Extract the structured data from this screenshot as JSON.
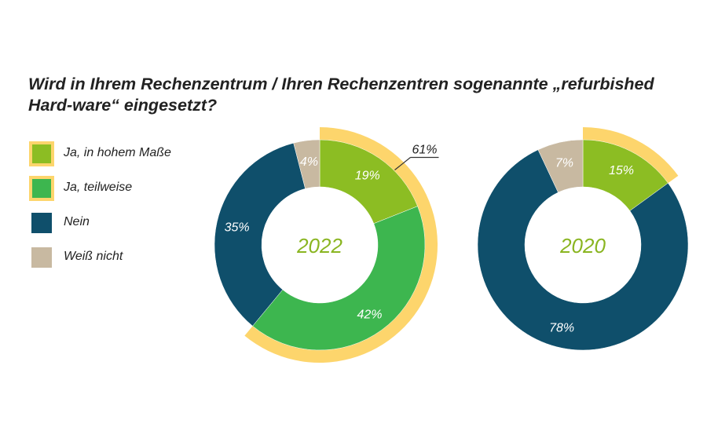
{
  "title": "Wird in Ihrem Rechenzentrum / Ihren Rechenzentren sogenannte „refurbished Hard-ware“ eingesetzt?",
  "legend": [
    {
      "label": "Ja, in hohem Maße",
      "color": "#8cbd23",
      "highlight": true
    },
    {
      "label": "Ja, teilweise",
      "color": "#3db64f",
      "highlight": true
    },
    {
      "label": "Nein",
      "color": "#0f4f6b",
      "highlight": false
    },
    {
      "label": "Weiß nicht",
      "color": "#c8b9a1",
      "highlight": false
    }
  ],
  "highlight_color": "#fdd56c",
  "chart_data": [
    {
      "type": "pie",
      "center_label": "2022",
      "categories": [
        "Ja, in hohem Maße",
        "Ja, teilweise",
        "Nein",
        "Weiß nicht"
      ],
      "values": [
        19,
        42,
        35,
        4
      ],
      "labels": [
        "19%",
        "42%",
        "35%",
        "4%"
      ],
      "combined_highlight": {
        "categories": [
          "Ja, in hohem Maße",
          "Ja, teilweise"
        ],
        "value": 61,
        "label": "61%"
      }
    },
    {
      "type": "pie",
      "center_label": "2020",
      "categories": [
        "Ja, in hohem Maße",
        "Nein",
        "Weiß nicht"
      ],
      "values": [
        15,
        78,
        7
      ],
      "labels": [
        "15%",
        "78%",
        "7%"
      ],
      "combined_highlight": {
        "categories": [
          "Ja, in hohem Maße"
        ],
        "value": 15,
        "label": ""
      }
    }
  ]
}
